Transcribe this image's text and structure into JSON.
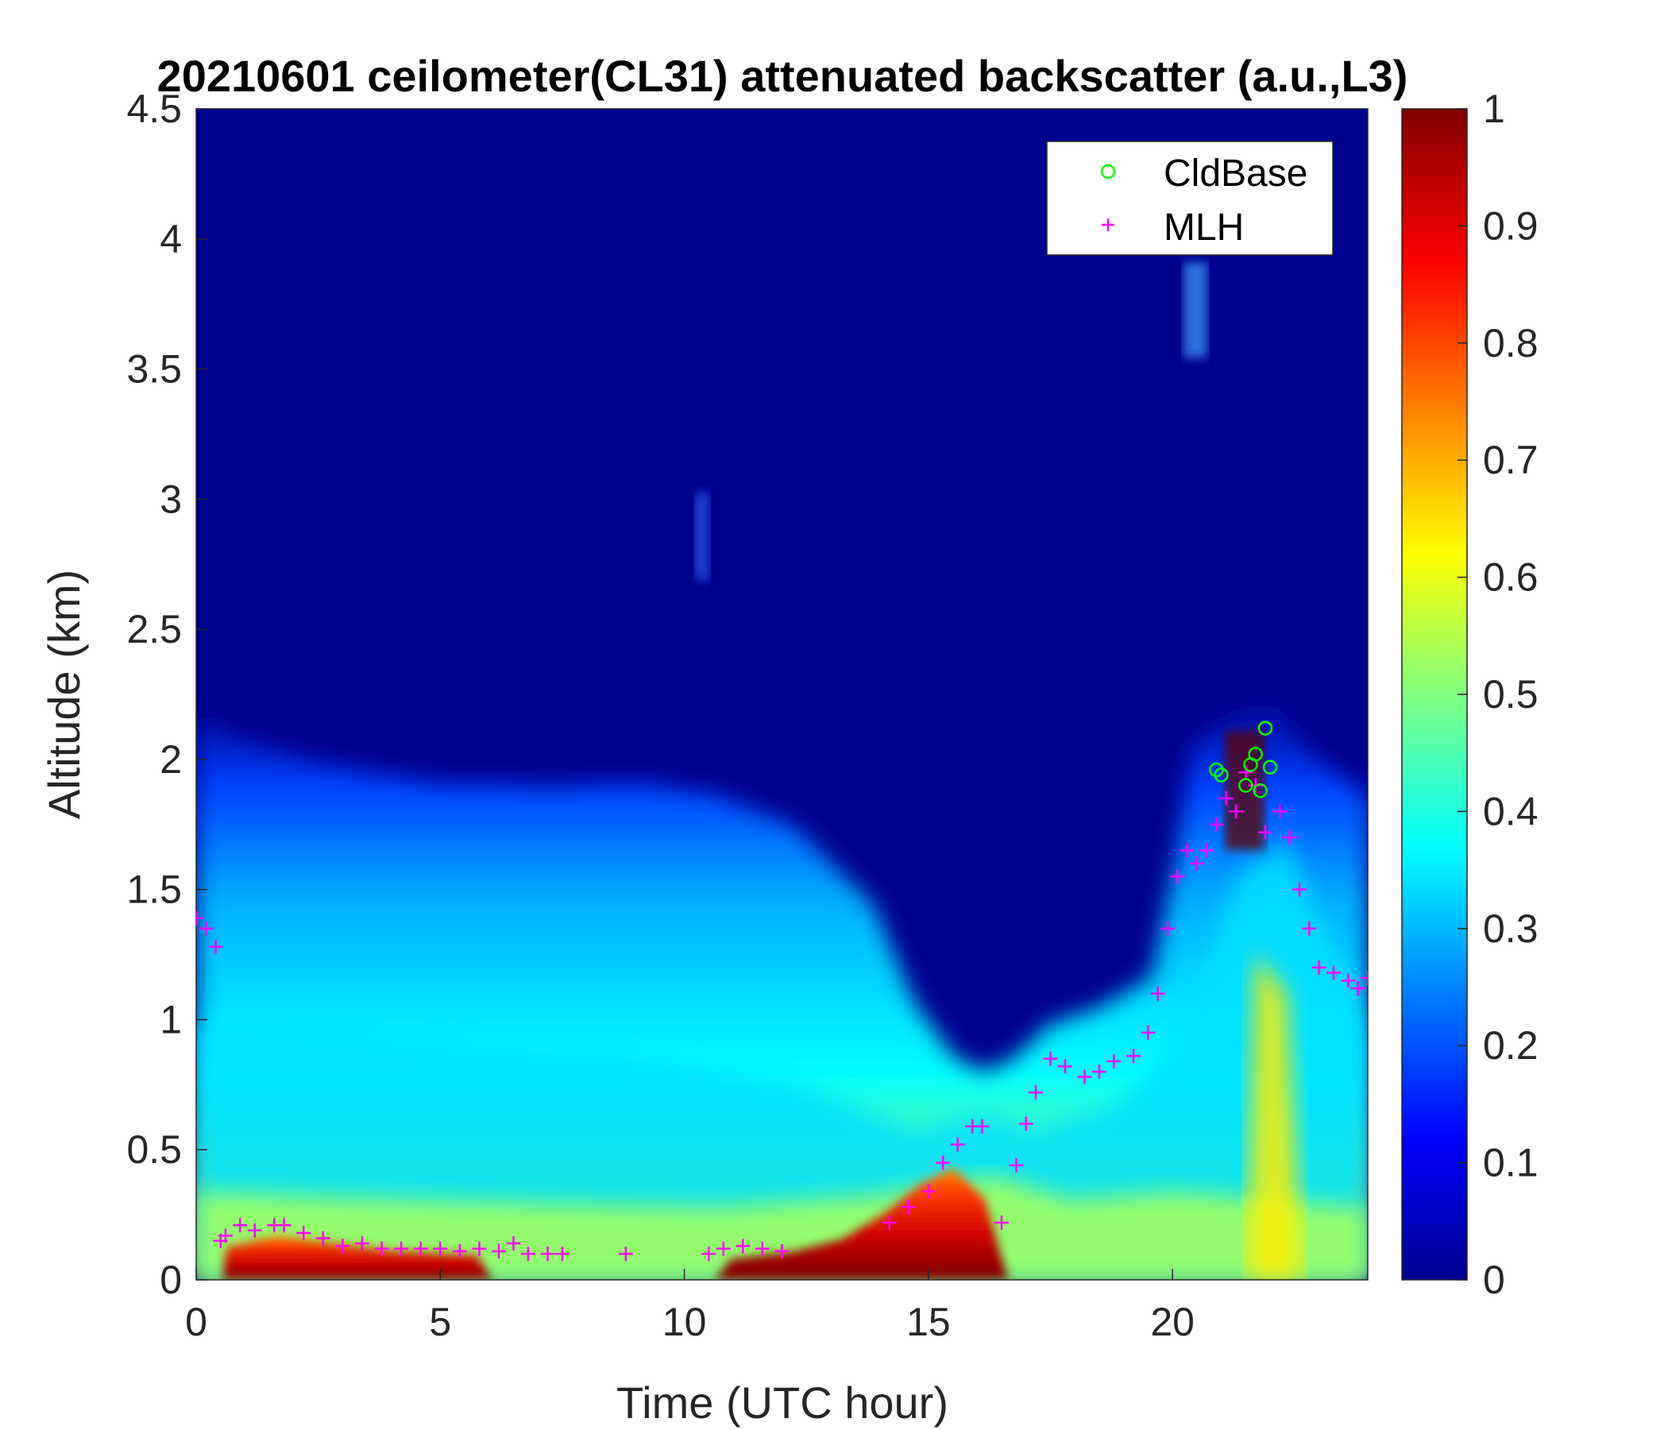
{
  "chart_data": {
    "type": "heatmap",
    "title": "20210601 ceilometer(CL31) attenuated backscatter (a.u.,L3)",
    "xlabel": "Time (UTC hour)",
    "ylabel": "Altitude (km)",
    "xlim": [
      0,
      24
    ],
    "ylim": [
      0,
      4.5
    ],
    "xticks": [
      0,
      5,
      10,
      15,
      20
    ],
    "xtick_labels": [
      "0",
      "5",
      "10",
      "15",
      "20"
    ],
    "yticks": [
      0,
      0.5,
      1,
      1.5,
      2,
      2.5,
      3,
      3.5,
      4,
      4.5
    ],
    "ytick_labels": [
      "0",
      "0.5",
      "1",
      "1.5",
      "2",
      "2.5",
      "3",
      "3.5",
      "4",
      "4.5"
    ],
    "colorbar": {
      "colormap": "jet",
      "clim": [
        0,
        1
      ],
      "ticks": [
        0,
        0.1,
        0.2,
        0.3,
        0.4,
        0.5,
        0.6,
        0.7,
        0.8,
        0.9,
        1
      ],
      "tick_labels": [
        "0",
        "0.1",
        "0.2",
        "0.3",
        "0.4",
        "0.5",
        "0.6",
        "0.7",
        "0.8",
        "0.9",
        "1"
      ]
    },
    "legend": {
      "location": "top-right",
      "entries": [
        {
          "label": "CldBase",
          "marker": "o",
          "color": "#00ff00"
        },
        {
          "label": "MLH",
          "marker": "+",
          "color": "#ff00ff"
        }
      ]
    },
    "series": [
      {
        "name": "MLH",
        "marker": "+",
        "color": "#ff00ff",
        "x": [
          0,
          0.2,
          0.4,
          0.5,
          0.6,
          0.9,
          1.2,
          1.6,
          1.8,
          2.2,
          2.6,
          3,
          3.4,
          3.8,
          4.2,
          4.6,
          5,
          5.4,
          5.8,
          6.2,
          6.5,
          6.8,
          7.2,
          7.5,
          8.8,
          10.5,
          10.8,
          11.2,
          11.6,
          12,
          14.2,
          14.6,
          15,
          15.3,
          15.6,
          15.9,
          16.1,
          16.5,
          16.8,
          17,
          17.2,
          17.5,
          17.8,
          18.2,
          18.5,
          18.8,
          19.2,
          19.5,
          19.7,
          19.9,
          20.1,
          20.3,
          20.5,
          20.7,
          20.9,
          21.1,
          21.3,
          21.5,
          21.7,
          21.9,
          22.2,
          22.4,
          22.6,
          22.8,
          23,
          23.3,
          23.6,
          23.8,
          24
        ],
        "y": [
          1.39,
          1.35,
          1.28,
          0.15,
          0.17,
          0.21,
          0.19,
          0.21,
          0.21,
          0.18,
          0.16,
          0.13,
          0.14,
          0.12,
          0.12,
          0.12,
          0.12,
          0.11,
          0.12,
          0.11,
          0.14,
          0.1,
          0.1,
          0.1,
          0.1,
          0.1,
          0.12,
          0.13,
          0.12,
          0.11,
          0.22,
          0.28,
          0.34,
          0.45,
          0.52,
          0.59,
          0.59,
          0.22,
          0.44,
          0.6,
          0.72,
          0.85,
          0.82,
          0.78,
          0.8,
          0.84,
          0.86,
          0.95,
          1.1,
          1.35,
          1.55,
          1.65,
          1.6,
          1.65,
          1.75,
          1.85,
          1.8,
          1.95,
          1.9,
          1.72,
          1.8,
          1.7,
          1.5,
          1.35,
          1.2,
          1.18,
          1.15,
          1.12,
          1.16
        ]
      },
      {
        "name": "CldBase",
        "marker": "o",
        "color": "#00ff00",
        "x": [
          20.9,
          21.0,
          21.5,
          21.6,
          21.7,
          21.8,
          21.9,
          22.0
        ],
        "y": [
          1.96,
          1.94,
          1.9,
          1.98,
          2.02,
          1.88,
          2.12,
          1.97
        ]
      }
    ]
  }
}
